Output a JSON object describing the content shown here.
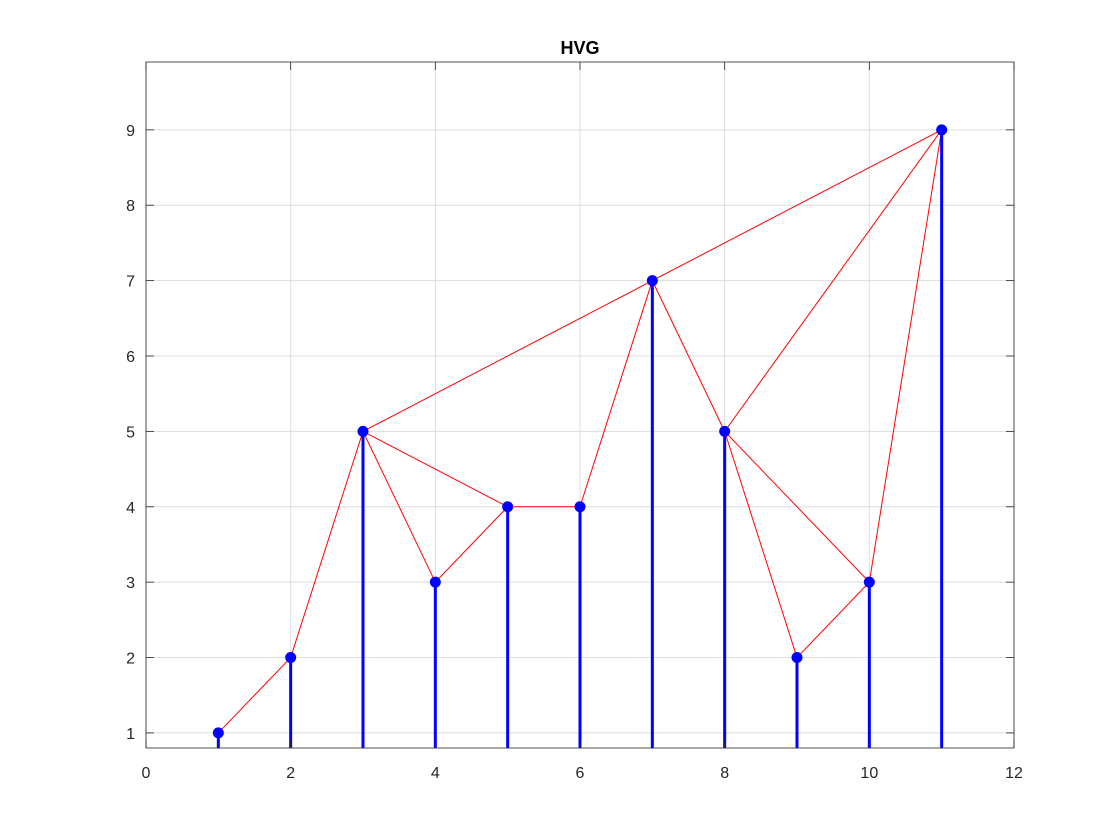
{
  "chart_data": {
    "type": "stem",
    "title": "HVG",
    "xlabel": "",
    "ylabel": "",
    "xlim": [
      0,
      12
    ],
    "ylim": [
      0.8,
      9.9
    ],
    "xticks": [
      0,
      2,
      4,
      6,
      8,
      10,
      12
    ],
    "yticks": [
      1,
      2,
      3,
      4,
      5,
      6,
      7,
      8,
      9
    ],
    "grid": true,
    "series": [
      {
        "type": "stem",
        "color": "#0000ff",
        "x": [
          1,
          2,
          3,
          4,
          5,
          6,
          7,
          8,
          9,
          10,
          11
        ],
        "y": [
          1,
          2,
          5,
          3,
          4,
          4,
          7,
          5,
          2,
          3,
          9
        ]
      }
    ],
    "edges": {
      "color": "#ff0000",
      "pairs": [
        [
          1,
          2
        ],
        [
          2,
          3
        ],
        [
          3,
          4
        ],
        [
          3,
          5
        ],
        [
          3,
          7
        ],
        [
          4,
          5
        ],
        [
          5,
          6
        ],
        [
          6,
          7
        ],
        [
          7,
          8
        ],
        [
          7,
          11
        ],
        [
          8,
          9
        ],
        [
          8,
          10
        ],
        [
          8,
          11
        ],
        [
          9,
          10
        ],
        [
          10,
          11
        ]
      ]
    }
  }
}
